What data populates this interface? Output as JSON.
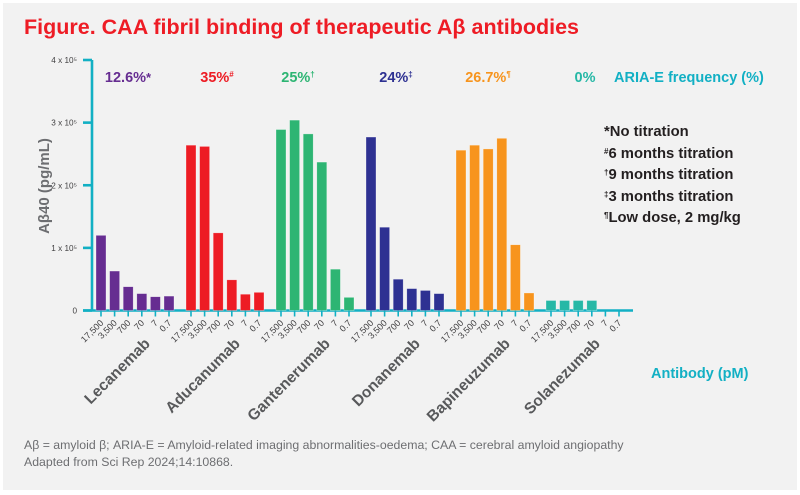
{
  "title": "Figure. CAA fibril binding of therapeutic Aβ antibodies",
  "chart_data": {
    "type": "bar",
    "title": "Figure. CAA fibril binding of therapeutic Aβ antibodies",
    "ylabel": "Aβ40 (pg/mL)",
    "xlabel": "Antibody (pM)",
    "ylim": [
      0,
      400000
    ],
    "yticks": [
      {
        "value": 0,
        "label": "0"
      },
      {
        "value": 100000,
        "label": "1 x 10⁵"
      },
      {
        "value": 200000,
        "label": "2 x 10⁵"
      },
      {
        "value": 300000,
        "label": "3 x 10⁵"
      },
      {
        "value": 400000,
        "label": "4 x 10⁵"
      }
    ],
    "concentrations": [
      "17,500",
      "3,500",
      "700",
      "70",
      "7",
      "0.7"
    ],
    "groups": [
      {
        "name": "Lecanemab",
        "color": "#662d91",
        "aria_e": "12.6%",
        "mark": "*",
        "values": [
          120000,
          63000,
          38000,
          27000,
          22000,
          23000
        ]
      },
      {
        "name": "Aducanumab",
        "color": "#ed1c24",
        "aria_e": "35%",
        "mark": "#",
        "values": [
          264000,
          262000,
          124000,
          49000,
          26000,
          29000
        ]
      },
      {
        "name": "Gantenerumab",
        "color": "#2db573",
        "aria_e": "25%",
        "mark": "†",
        "values": [
          289000,
          304000,
          282000,
          237000,
          66000,
          21000
        ]
      },
      {
        "name": "Donanemab",
        "color": "#2e3192",
        "aria_e": "24%",
        "mark": "‡",
        "values": [
          277000,
          133000,
          50000,
          35000,
          32000,
          27000
        ]
      },
      {
        "name": "Bapineuzumab",
        "color": "#f7941d",
        "aria_e": "26.7%",
        "mark": "¶",
        "values": [
          256000,
          264000,
          258000,
          275000,
          105000,
          28000
        ]
      },
      {
        "name": "Solanezumab",
        "color": "#26b8a6",
        "aria_e": "0%",
        "mark": "",
        "values": [
          16000,
          16000,
          16000,
          16000,
          0,
          0
        ]
      }
    ],
    "aria_label": "ARIA-E frequency (%)",
    "axis_color": "#12b0c4",
    "legend_notes": [
      {
        "mark": "*",
        "text": "No titration"
      },
      {
        "mark": "#",
        "text": "6 months titration"
      },
      {
        "mark": "†",
        "text": "9 months titration"
      },
      {
        "mark": "‡",
        "text": "3 months titration"
      },
      {
        "mark": "¶",
        "text": "Low dose, 2 mg/kg"
      }
    ],
    "grid": false
  },
  "footer": {
    "line1": "Aβ = amyloid β; ARIA-E = Amyloid-related imaging abnormalities-oedema; CAA = cerebral amyloid angiopathy",
    "line2": "Adapted from Sci Rep 2024;14:10868."
  }
}
